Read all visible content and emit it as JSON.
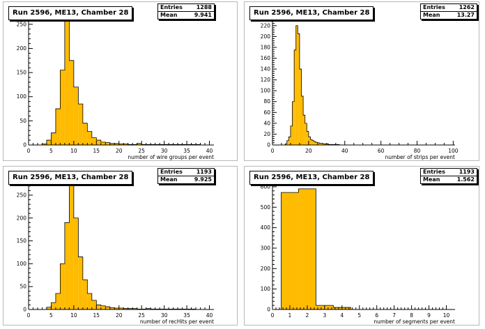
{
  "charts": [
    {
      "title": "Run 2596, ME13, Chamber 28",
      "stats": {
        "entries_label": "Entries",
        "entries": "1288",
        "mean_label": "Mean",
        "mean": "9.941"
      },
      "chart_data": {
        "type": "bar",
        "xlabel": "number of wire groups per event",
        "xlim": [
          0,
          41
        ],
        "ylim": [
          0,
          270
        ],
        "xticks": [
          0,
          5,
          10,
          15,
          20,
          25,
          30,
          35,
          40
        ],
        "yticks": [
          0,
          50,
          100,
          150,
          200,
          250
        ],
        "bin_width": 1,
        "x_start": 3,
        "values": [
          2,
          10,
          25,
          75,
          155,
          262,
          175,
          120,
          85,
          45,
          28,
          15,
          10,
          6,
          5,
          3,
          3,
          2,
          2,
          1,
          1,
          3,
          1,
          1,
          1,
          1,
          1,
          1,
          1,
          1,
          1,
          1,
          1,
          1,
          1
        ]
      }
    },
    {
      "title": "Run 2596, ME13, Chamber 28",
      "stats": {
        "entries_label": "Entries",
        "entries": "1262",
        "mean_label": "Mean",
        "mean": "13.27"
      },
      "chart_data": {
        "type": "bar",
        "xlabel": "number of strips per event",
        "xlim": [
          0,
          101
        ],
        "ylim": [
          0,
          230
        ],
        "xticks": [
          0,
          20,
          40,
          60,
          80,
          100
        ],
        "yticks": [
          0,
          20,
          40,
          60,
          80,
          100,
          120,
          140,
          160,
          180,
          200,
          220
        ],
        "bin_width": 1,
        "x_start": 7,
        "values": [
          2,
          8,
          15,
          35,
          80,
          175,
          220,
          205,
          140,
          90,
          55,
          40,
          25,
          15,
          10,
          8,
          6,
          5,
          4,
          3,
          3,
          2,
          2,
          2,
          1,
          1,
          1,
          1,
          1,
          1
        ]
      }
    },
    {
      "title": "Run 2596, ME13, Chamber 28",
      "stats": {
        "entries_label": "Entries",
        "entries": "1193",
        "mean_label": "Mean",
        "mean": "9.925"
      },
      "chart_data": {
        "type": "bar",
        "xlabel": "number of recHits per event",
        "xlim": [
          0,
          41
        ],
        "ylim": [
          0,
          285
        ],
        "xticks": [
          0,
          5,
          10,
          15,
          20,
          25,
          30,
          35,
          40
        ],
        "yticks": [
          0,
          50,
          100,
          150,
          200,
          250
        ],
        "bin_width": 1,
        "x_start": 4,
        "values": [
          5,
          15,
          35,
          100,
          190,
          280,
          200,
          115,
          65,
          35,
          20,
          10,
          8,
          6,
          4,
          3,
          3,
          2,
          2,
          2,
          1,
          1,
          2,
          1,
          1,
          1,
          1,
          1,
          1,
          1,
          1,
          1,
          1
        ]
      }
    },
    {
      "title": "Run 2596, ME13, Chamber 28",
      "stats": {
        "entries_label": "Entries",
        "entries": "1193",
        "mean_label": "Mean",
        "mean": "1.562"
      },
      "chart_data": {
        "type": "bar",
        "xlabel": "number of segments per event",
        "xlim": [
          0,
          10.5
        ],
        "ylim": [
          0,
          610
        ],
        "xticks": [
          0,
          1,
          2,
          3,
          4,
          5,
          6,
          7,
          8,
          9,
          10
        ],
        "yticks": [
          0,
          100,
          200,
          300,
          400,
          500,
          600
        ],
        "bin_width": 1,
        "x_start": 0.5,
        "values": [
          572,
          590,
          20,
          10
        ]
      }
    }
  ],
  "colors": {
    "fill": "#ffbb00",
    "edge": "#000000",
    "axis": "#000000"
  }
}
